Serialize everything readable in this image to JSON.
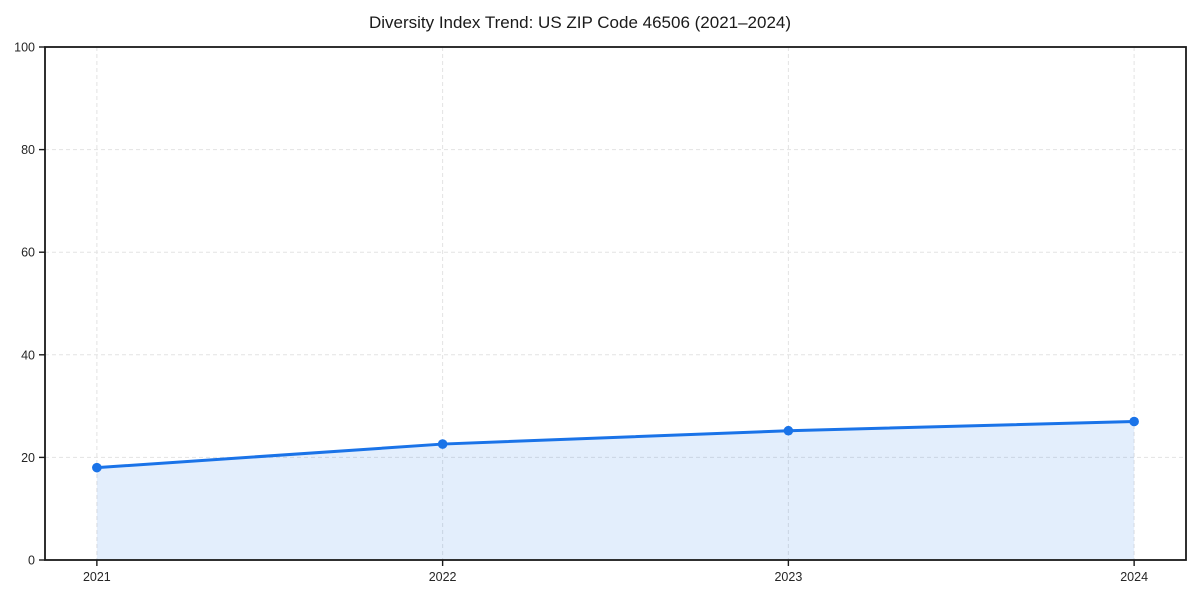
{
  "figure": {
    "title": "Diversity Index Trend: US ZIP Code 46506 (2021–2024)"
  },
  "chart_data": {
    "type": "area",
    "title": "Diversity Index Trend: US ZIP Code 46506 (2021–2024)",
    "series_name": "Diversity Index",
    "categories": [
      "2021",
      "2022",
      "2023",
      "2024"
    ],
    "x": [
      2021,
      2022,
      2023,
      2024
    ],
    "values": [
      18,
      22.6,
      25.2,
      27
    ],
    "xlabel": "",
    "ylabel": "",
    "xlim": [
      2020.85,
      2024.15
    ],
    "ylim": [
      0,
      100
    ],
    "xticks": [
      2021,
      2022,
      2023,
      2024
    ],
    "xtick_labels": [
      "2021",
      "2022",
      "2023",
      "2024"
    ],
    "yticks": [
      0,
      20,
      40,
      60,
      80,
      100
    ],
    "ytick_labels": [
      "0",
      "20",
      "40",
      "60",
      "80",
      "100"
    ],
    "grid": true,
    "grid_style": "dashed",
    "legend": false,
    "marker": "circle",
    "colors": {
      "line": "#1a73e8",
      "fill": "rgba(26,115,232,0.12)",
      "grid": "#e3e3e3",
      "spine": "#1a1a1a",
      "tick_label": "#262626",
      "title": "#1a1a1a",
      "background": "#ffffff"
    }
  }
}
